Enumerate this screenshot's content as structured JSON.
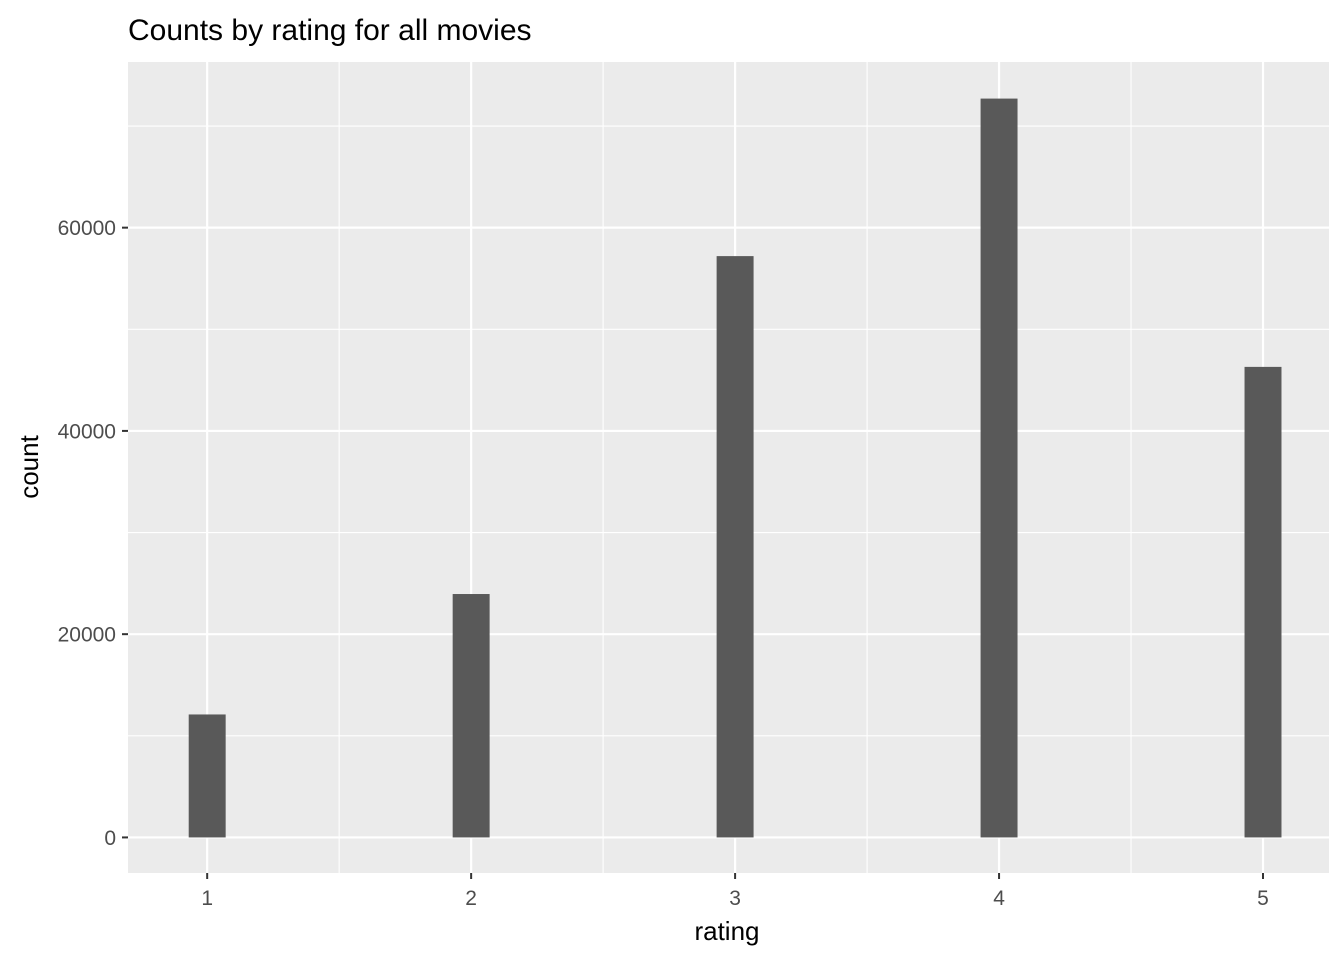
{
  "chart_data": {
    "type": "bar",
    "title": "Counts by rating for all movies",
    "xlabel": "rating",
    "ylabel": "count",
    "categories": [
      1,
      2,
      3,
      4,
      5
    ],
    "x": [
      1,
      2,
      3,
      4,
      5
    ],
    "values": [
      12100,
      23950,
      57200,
      72700,
      46300
    ],
    "bar_width": 0.14,
    "xlim": [
      0.7,
      5.25
    ],
    "ylim": [
      -3500,
      76300
    ],
    "x_ticks": [
      1,
      2,
      3,
      4,
      5
    ],
    "y_ticks": [
      0,
      20000,
      40000,
      60000
    ],
    "y_minor_ticks": [
      10000,
      30000,
      50000,
      70000
    ],
    "x_minor_ticks": [
      1.5,
      2.5,
      3.5,
      4.5
    ],
    "grid": true,
    "legend": "none",
    "colors": {
      "panel_background": "#ebebeb",
      "grid": "#ffffff",
      "bar_fill": "#595959",
      "tick_label": "#4d4d4d",
      "tick_mark": "#333333",
      "text": "#000000"
    }
  }
}
